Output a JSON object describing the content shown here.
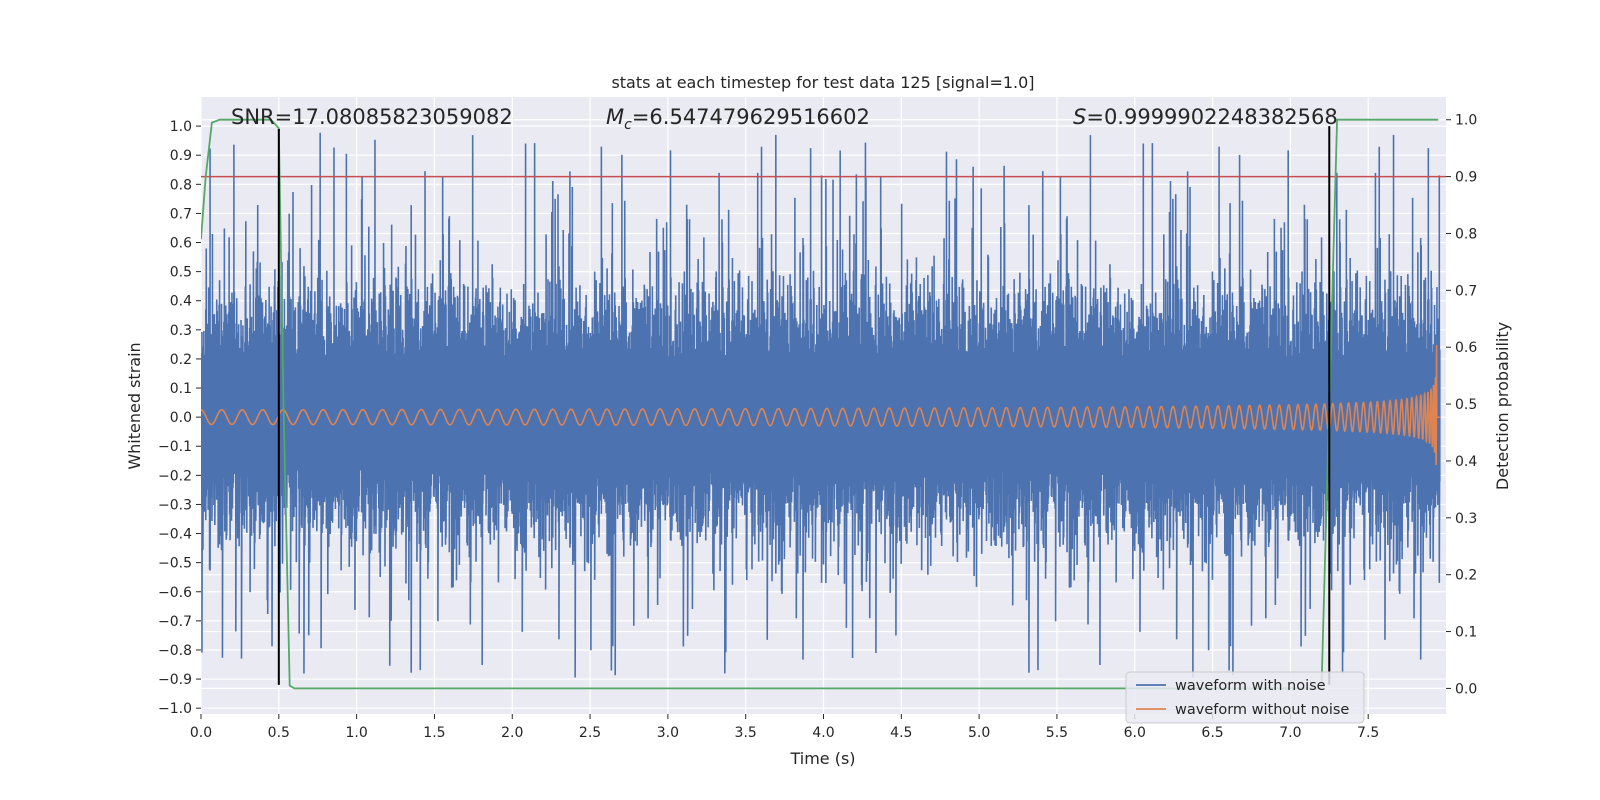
{
  "chart_data": {
    "type": "line",
    "title": "stats at each timestep for test data 125 [signal=1.0]",
    "xlabel": "Time (s)",
    "ylabel_left": "Whitened strain",
    "ylabel_right": "Detection probability",
    "xlim": [
      0.0,
      8.0
    ],
    "ylim_left": [
      -1.02,
      1.1
    ],
    "ylim_right": [
      -0.045,
      1.04
    ],
    "x_ticks": [
      "0.0",
      "0.5",
      "1.0",
      "1.5",
      "2.0",
      "2.5",
      "3.0",
      "3.5",
      "4.0",
      "4.5",
      "5.0",
      "5.5",
      "6.0",
      "6.5",
      "7.0",
      "7.5"
    ],
    "y_ticks_left": [
      "-1.0",
      "-0.9",
      "-0.8",
      "-0.7",
      "-0.6",
      "-0.5",
      "-0.4",
      "-0.3",
      "-0.2",
      "-0.1",
      "0.0",
      "0.1",
      "0.2",
      "0.3",
      "0.4",
      "0.5",
      "0.6",
      "0.7",
      "0.8",
      "0.9",
      "1.0"
    ],
    "y_ticks_right": [
      "0.0",
      "0.1",
      "0.2",
      "0.3",
      "0.4",
      "0.5",
      "0.6",
      "0.7",
      "0.8",
      "0.9",
      "1.0"
    ],
    "grid": true,
    "legend_position": "lower-right",
    "annotations": {
      "snr": "SNR=17.08085823059082",
      "mc_symbol": "M",
      "mc_sub": "c",
      "mc_value": "=6.547479629516602",
      "s_symbol": "S",
      "s_value": "=0.9999902248382568"
    },
    "series": [
      {
        "name": "waveform with noise",
        "color": "#4c72b0",
        "axis": "left",
        "description_values": {
          "typical_range": [
            -0.55,
            0.6
          ],
          "max_peak": 1.0,
          "min_peak": -0.92
        }
      },
      {
        "name": "waveform without noise",
        "color": "#dd8452",
        "axis": "left",
        "chirp": {
          "t_start": 0.0,
          "t_merge": 7.94,
          "amp_start": 0.025,
          "amp_peak": 0.57,
          "f_start": 7.5
        }
      },
      {
        "color": "#55a868",
        "axis": "right",
        "x": [
          0.0,
          0.03,
          0.07,
          0.12,
          0.45,
          0.5,
          0.53,
          0.57,
          0.6,
          7.2,
          7.25,
          7.3,
          7.95
        ],
        "y": [
          0.79,
          0.9,
          0.995,
          1.0,
          1.0,
          0.985,
          0.5,
          0.005,
          0.0,
          0.0,
          0.5,
          1.0,
          1.0
        ]
      },
      {
        "color": "#c44e52",
        "axis": "right",
        "type": "hline",
        "y": 0.9
      }
    ],
    "vlines": [
      {
        "x": 0.5,
        "color": "#000000",
        "ymin": -0.92,
        "ymax": 0.99
      },
      {
        "x": 7.25,
        "color": "#000000",
        "ymin": -0.92,
        "ymax": 1.0
      }
    ],
    "legend": [
      {
        "label": "waveform with noise",
        "color": "#4c72b0"
      },
      {
        "label": "waveform without noise",
        "color": "#dd8452"
      }
    ],
    "colors": {
      "axes_bg": "#eaeaf2",
      "grid": "#ffffff"
    }
  }
}
